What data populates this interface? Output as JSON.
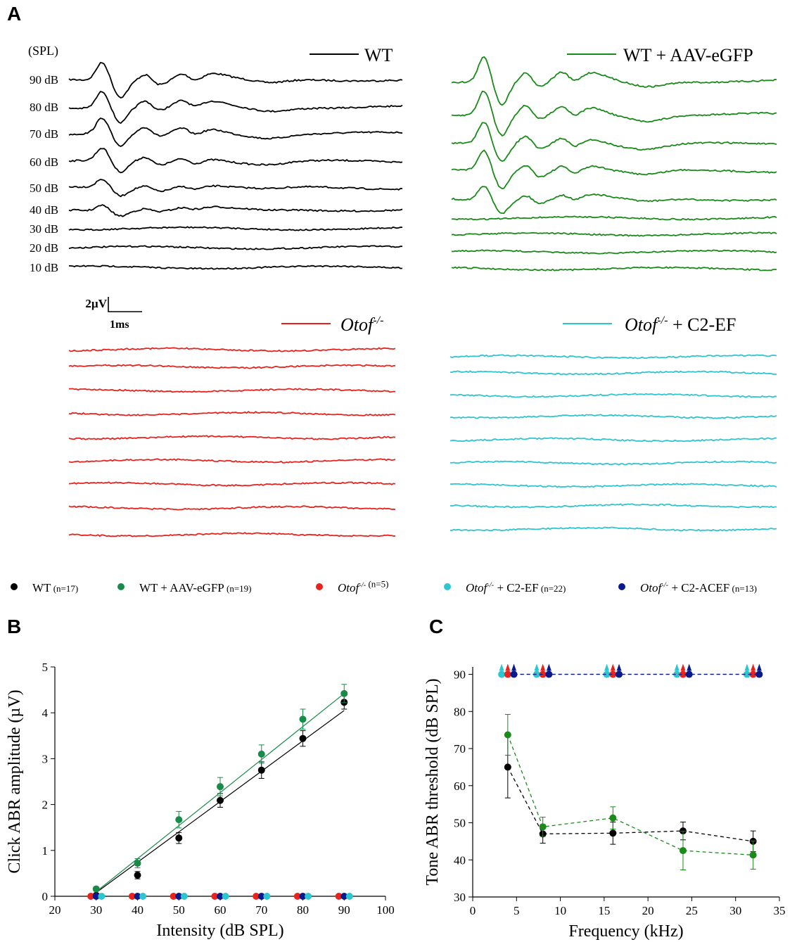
{
  "panel_labels": {
    "a": "A",
    "b": "B",
    "c": "C"
  },
  "panel_a": {
    "spl_header": "(SPL)",
    "db_levels": [
      "90 dB",
      "80 dB",
      "70 dB",
      "60 dB",
      "50 dB",
      "40 dB",
      "30 dB",
      "20 dB",
      "10 dB"
    ],
    "scale_bar": {
      "amplitude": "2µV",
      "time": "1ms"
    },
    "groups": [
      {
        "id": "wt",
        "label": "WT",
        "color": "#000000",
        "traces": 9
      },
      {
        "id": "wt_aav",
        "label": "WT + AAV-eGFP",
        "color": "#1a8a1a",
        "traces": 9
      },
      {
        "id": "otof",
        "label": "Otof",
        "label_sup": "-/-",
        "label_after": "",
        "color": "#e8231e",
        "traces": 9
      },
      {
        "id": "otof_c2ef",
        "label": "Otof",
        "label_sup": "-/-",
        "label_after": " + C2-EF",
        "color": "#2ec5cf",
        "traces": 9
      }
    ]
  },
  "legend": [
    {
      "label": "WT",
      "label_sup": "",
      "label_after": "",
      "n": "(n=17)",
      "color": "#000000"
    },
    {
      "label": "WT + AAV-eGFP",
      "label_sup": "",
      "label_after": "",
      "n": "(n=19)",
      "color": "#1a8a4a"
    },
    {
      "label": "Otof",
      "label_sup": "-/-",
      "label_after": "",
      "n": "(n=5)",
      "color": "#e8231e"
    },
    {
      "label": "Otof",
      "label_sup": "-/-",
      "label_after": " + C2-EF",
      "n": "(n=22)",
      "color": "#2ec5cf"
    },
    {
      "label": "Otof",
      "label_sup": "-/-",
      "label_after": " + C2-ACEF",
      "n": "(n=13)",
      "color": "#0a1a8a"
    }
  ],
  "chart_data": [
    {
      "id": "B",
      "type": "scatter",
      "xlabel": "Intensity (dB SPL)",
      "ylabel": "Click ABR amplitude (µV)",
      "xlim": [
        20,
        100
      ],
      "ylim": [
        0,
        5
      ],
      "xticks": [
        20,
        30,
        40,
        50,
        60,
        70,
        80,
        90,
        100
      ],
      "yticks": [
        0,
        1,
        2,
        3,
        4,
        5
      ],
      "x": [
        30,
        40,
        50,
        60,
        70,
        80,
        90
      ],
      "series": [
        {
          "group": "WT",
          "color": "#000000",
          "values": [
            0.02,
            0.46,
            1.27,
            2.09,
            2.75,
            3.44,
            4.23
          ],
          "err": [
            0.03,
            0.08,
            0.12,
            0.15,
            0.18,
            0.17,
            0.15
          ],
          "fit": [
            30,
            0.08,
            90,
            4.05
          ]
        },
        {
          "group": "WT + AAV-eGFP",
          "color": "#1a8a4a",
          "values": [
            0.16,
            0.72,
            1.67,
            2.39,
            3.1,
            3.86,
            4.42
          ],
          "err": [
            0.04,
            0.1,
            0.18,
            0.2,
            0.2,
            0.22,
            0.2
          ],
          "fit": [
            30,
            0.1,
            90,
            4.42
          ]
        },
        {
          "group": "Otof-/-",
          "color": "#e8231e",
          "values": [
            0,
            0,
            0,
            0,
            0,
            0,
            0
          ],
          "x_offset": -1.3
        },
        {
          "group": "Otof-/- + C2-ACEF",
          "color": "#0a1a8a",
          "values": [
            0,
            0,
            0,
            0,
            0,
            0,
            0
          ],
          "x_offset": 0
        },
        {
          "group": "Otof-/- + C2-EF",
          "color": "#2ec5cf",
          "values": [
            0,
            0,
            0,
            0,
            0,
            0,
            0
          ],
          "x_offset": 1.3
        }
      ]
    },
    {
      "id": "C",
      "type": "line",
      "xlabel": "Frequency (kHz)",
      "ylabel": "Tone ABR threshold (dB SPL)",
      "xlim": [
        0,
        35
      ],
      "ylim": [
        30,
        92
      ],
      "xticks": [
        0,
        5,
        10,
        15,
        20,
        25,
        30,
        35
      ],
      "yticks": [
        30,
        40,
        50,
        60,
        70,
        80,
        90
      ],
      "x": [
        4,
        8,
        16,
        24,
        32
      ],
      "series": [
        {
          "group": "WT",
          "color": "#000000",
          "values": [
            65,
            47,
            47.2,
            47.8,
            45
          ],
          "err": [
            8.3,
            2.5,
            3.0,
            2.4,
            2.8
          ],
          "x_offset": 0
        },
        {
          "group": "WT + AAV-eGFP",
          "color": "#1a8a1a",
          "values": [
            73.7,
            48.9,
            51.3,
            42.5,
            41.3
          ],
          "err": [
            5.5,
            2.6,
            3.0,
            5.2,
            3.8
          ],
          "x_offset": 0
        },
        {
          "group": "Otof-/- + C2-EF",
          "color": "#2ec5cf",
          "values": [
            90,
            90,
            90,
            90,
            90
          ],
          "x_offset": -0.7,
          "above_range": true
        },
        {
          "group": "Otof-/-",
          "color": "#e8231e",
          "values": [
            90,
            90,
            90,
            90,
            90
          ],
          "x_offset": 0,
          "above_range": true
        },
        {
          "group": "Otof-/- + C2-ACEF",
          "color": "#0a1a8a",
          "values": [
            90,
            90,
            90,
            90,
            90
          ],
          "x_offset": 0.7,
          "above_range": true
        }
      ]
    }
  ]
}
